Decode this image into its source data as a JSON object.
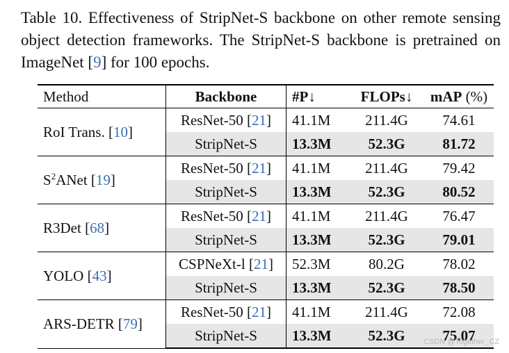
{
  "caption": {
    "before_cite": "Table 10.  Effectiveness of StripNet-S backbone on other remote sensing object detection frameworks. The StripNet-S backbone is pretrained on ImageNet [",
    "cite": "9",
    "after_cite": "] for 100 epochs."
  },
  "headers": {
    "method": "Method",
    "backbone": "Backbone",
    "params": "#P↓",
    "flops": "FLOPs↓",
    "map_bold": "mAP",
    "map_unit": " (%)"
  },
  "groups": [
    {
      "method_name": "RoI Trans. [",
      "method_cite": "10",
      "method_sup": "",
      "baseline": {
        "backbone": "ResNet-50 [",
        "backbone_cite": "21",
        "params": "41.1M",
        "flops": "211.4G",
        "map": "74.61"
      },
      "ours": {
        "backbone": "StripNet-S",
        "params": "13.3M",
        "flops": "52.3G",
        "map": "81.72"
      }
    },
    {
      "method_name": "S",
      "method_sup": "2",
      "method_name2": "ANet [",
      "method_cite": "19",
      "baseline": {
        "backbone": "ResNet-50 [",
        "backbone_cite": "21",
        "params": "41.1M",
        "flops": "211.4G",
        "map": "79.42"
      },
      "ours": {
        "backbone": "StripNet-S",
        "params": "13.3M",
        "flops": "52.3G",
        "map": "80.52"
      }
    },
    {
      "method_name": "R3Det [",
      "method_cite": "68",
      "method_sup": "",
      "baseline": {
        "backbone": "ResNet-50 [",
        "backbone_cite": "21",
        "params": "41.1M",
        "flops": "211.4G",
        "map": "76.47"
      },
      "ours": {
        "backbone": "StripNet-S",
        "params": "13.3M",
        "flops": "52.3G",
        "map": "79.01"
      }
    },
    {
      "method_name": "YOLO [",
      "method_cite": "43",
      "method_sup": "",
      "baseline": {
        "backbone": "CSPNeXt-l [",
        "backbone_cite": "21",
        "params": "52.3M",
        "flops": "80.2G",
        "map": "78.02"
      },
      "ours": {
        "backbone": "StripNet-S",
        "params": "13.3M",
        "flops": "52.3G",
        "map": "78.50"
      }
    },
    {
      "method_name": "ARS-DETR [",
      "method_cite": "79",
      "method_sup": "",
      "baseline": {
        "backbone": "ResNet-50 [",
        "backbone_cite": "21",
        "params": "41.1M",
        "flops": "211.4G",
        "map": "72.08"
      },
      "ours": {
        "backbone": "StripNet-S",
        "params": "13.3M",
        "flops": "52.3G",
        "map": "75.07"
      }
    }
  ],
  "watermark": "CSDN @Together_CZ",
  "colors": {
    "cite": "#3b6fb0",
    "highlight_row": "#e6e6e6"
  }
}
